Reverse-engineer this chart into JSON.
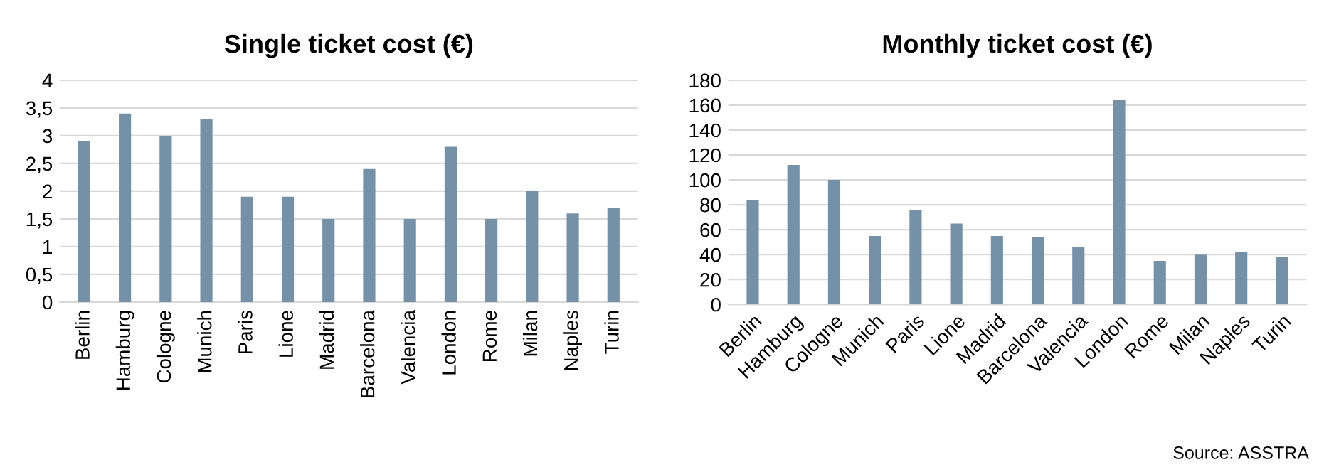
{
  "chart_data": [
    {
      "type": "bar",
      "title": "Single ticket cost (€)",
      "categories": [
        "Berlin",
        "Hamburg",
        "Cologne",
        "Munich",
        "Paris",
        "Lione",
        "Madrid",
        "Barcelona",
        "Valencia",
        "London",
        "Rome",
        "Milan",
        "Naples",
        "Turin"
      ],
      "values": [
        2.9,
        3.4,
        3,
        3.3,
        1.9,
        1.9,
        1.5,
        2.4,
        1.5,
        2.8,
        1.5,
        2,
        1.6,
        1.7
      ],
      "color": "#7591a8",
      "ylim": [
        0,
        4
      ],
      "yticks": [
        0,
        {
          "value": 0.5,
          "label": "0,5"
        },
        1,
        {
          "value": 1.5,
          "label": "1,5"
        },
        2,
        {
          "value": 2.5,
          "label": "2,5"
        },
        3,
        {
          "value": 3.5,
          "label": "3,5"
        },
        4
      ],
      "grid": "y",
      "legend": false
    },
    {
      "type": "bar",
      "title": "Monthly ticket cost (€)",
      "categories": [
        "Berlin",
        "Hamburg",
        "Cologne",
        "Munich",
        "Paris",
        "Lione",
        "Madrid",
        "Barcelona",
        "Valencia",
        "London",
        "Rome",
        "Milan",
        "Naples",
        "Turin"
      ],
      "values": [
        84,
        112,
        100,
        55,
        76,
        65,
        55,
        54,
        46,
        164,
        35,
        40,
        42,
        38
      ],
      "color": "#7591a8",
      "ylim": [
        0,
        180
      ],
      "yticks": [
        0,
        20,
        40,
        60,
        80,
        100,
        120,
        140,
        160,
        180
      ],
      "grid": "y",
      "legend": false,
      "annotations": [
        "Source: ASSTRA"
      ]
    }
  ]
}
